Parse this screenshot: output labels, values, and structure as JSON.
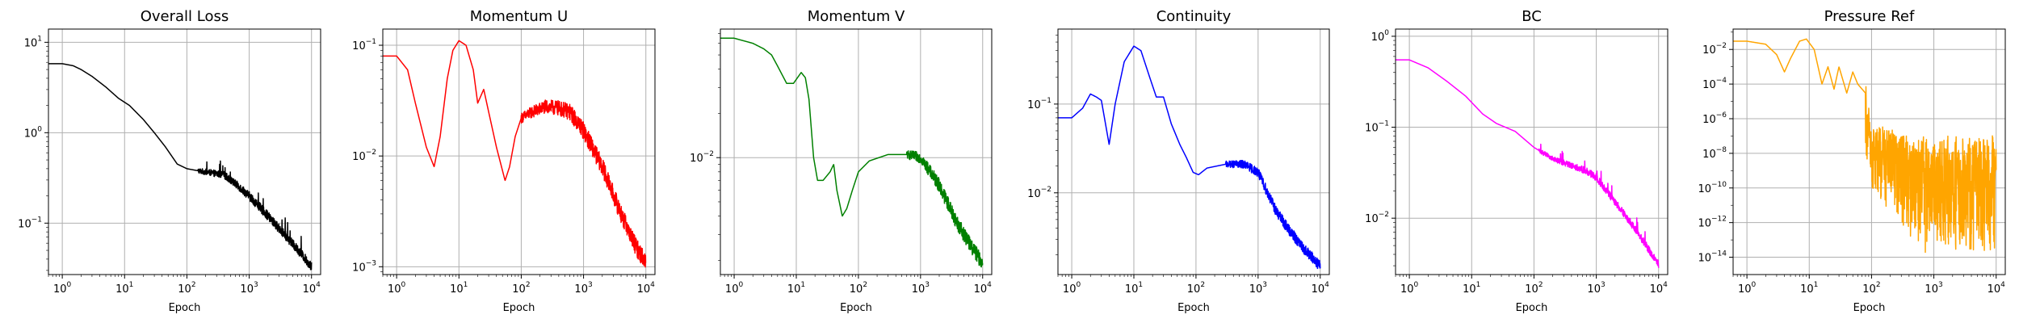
{
  "chart_data": [
    {
      "type": "line",
      "title": "Overall Loss",
      "xlabel": "Epoch",
      "ylabel": "",
      "xscale": "log",
      "yscale": "log",
      "xlim": [
        0.6,
        14000
      ],
      "ylim": [
        0.027,
        14
      ],
      "xticks": [
        1,
        10,
        100,
        1000,
        10000
      ],
      "yticks": [
        0.1,
        1,
        10
      ],
      "grid": true,
      "color": "#000000",
      "noise": {
        "from_epoch": 150,
        "amplitude_decades": 0.05,
        "spikes": true
      },
      "points": [
        [
          0.6,
          5.8
        ],
        [
          1,
          5.8
        ],
        [
          1.5,
          5.5
        ],
        [
          2,
          5.0
        ],
        [
          3,
          4.2
        ],
        [
          5,
          3.2
        ],
        [
          8,
          2.4
        ],
        [
          12,
          2.0
        ],
        [
          20,
          1.4
        ],
        [
          30,
          1.0
        ],
        [
          45,
          0.7
        ],
        [
          70,
          0.45
        ],
        [
          100,
          0.4
        ],
        [
          150,
          0.38
        ],
        [
          250,
          0.36
        ],
        [
          400,
          0.34
        ],
        [
          700,
          0.25
        ],
        [
          1000,
          0.2
        ],
        [
          2000,
          0.12
        ],
        [
          4000,
          0.07
        ],
        [
          7000,
          0.045
        ],
        [
          10000,
          0.033
        ]
      ]
    },
    {
      "type": "line",
      "title": "Momentum U",
      "xlabel": "Epoch",
      "ylabel": "",
      "xscale": "log",
      "yscale": "log",
      "xlim": [
        0.6,
        14000
      ],
      "ylim": [
        0.00085,
        0.14
      ],
      "xticks": [
        1,
        10,
        100,
        1000,
        10000
      ],
      "yticks": [
        0.001,
        0.01,
        0.1
      ],
      "grid": true,
      "color": "#ff0000",
      "noise": {
        "from_epoch": 100,
        "amplitude_decades": 0.08,
        "spikes": false
      },
      "points": [
        [
          0.6,
          0.08
        ],
        [
          1,
          0.08
        ],
        [
          1.5,
          0.06
        ],
        [
          2,
          0.03
        ],
        [
          3,
          0.012
        ],
        [
          4,
          0.008
        ],
        [
          5,
          0.015
        ],
        [
          6.5,
          0.05
        ],
        [
          8,
          0.09
        ],
        [
          10,
          0.11
        ],
        [
          13,
          0.1
        ],
        [
          17,
          0.06
        ],
        [
          20,
          0.03
        ],
        [
          25,
          0.04
        ],
        [
          30,
          0.025
        ],
        [
          40,
          0.012
        ],
        [
          55,
          0.006
        ],
        [
          65,
          0.008
        ],
        [
          80,
          0.015
        ],
        [
          100,
          0.022
        ],
        [
          150,
          0.025
        ],
        [
          250,
          0.028
        ],
        [
          400,
          0.027
        ],
        [
          600,
          0.025
        ],
        [
          1000,
          0.017
        ],
        [
          2000,
          0.008
        ],
        [
          4000,
          0.003
        ],
        [
          7000,
          0.0015
        ],
        [
          10000,
          0.0011
        ]
      ]
    },
    {
      "type": "line",
      "title": "Momentum V",
      "xlabel": "Epoch",
      "ylabel": "",
      "xscale": "log",
      "yscale": "log",
      "xlim": [
        0.6,
        14000
      ],
      "ylim": [
        0.0016,
        0.075
      ],
      "xticks": [
        1,
        10,
        100,
        1000,
        10000
      ],
      "yticks": [
        0.01
      ],
      "grid": true,
      "color": "#008000",
      "noise": {
        "from_epoch": 600,
        "amplitude_decades": 0.05,
        "spikes": false
      },
      "points": [
        [
          0.6,
          0.065
        ],
        [
          1,
          0.065
        ],
        [
          2,
          0.06
        ],
        [
          3,
          0.055
        ],
        [
          4,
          0.05
        ],
        [
          5,
          0.042
        ],
        [
          7,
          0.032
        ],
        [
          9,
          0.032
        ],
        [
          12,
          0.038
        ],
        [
          14,
          0.035
        ],
        [
          16,
          0.025
        ],
        [
          19,
          0.01
        ],
        [
          22,
          0.007
        ],
        [
          27,
          0.007
        ],
        [
          35,
          0.008
        ],
        [
          40,
          0.009
        ],
        [
          45,
          0.006
        ],
        [
          55,
          0.004
        ],
        [
          65,
          0.0045
        ],
        [
          80,
          0.006
        ],
        [
          100,
          0.008
        ],
        [
          150,
          0.0095
        ],
        [
          300,
          0.0105
        ],
        [
          600,
          0.0105
        ],
        [
          1000,
          0.01
        ],
        [
          2000,
          0.0065
        ],
        [
          4000,
          0.0035
        ],
        [
          7000,
          0.0024
        ],
        [
          10000,
          0.0019
        ]
      ]
    },
    {
      "type": "line",
      "title": "Continuity",
      "xlabel": "Epoch",
      "ylabel": "",
      "xscale": "log",
      "yscale": "log",
      "xlim": [
        0.6,
        14000
      ],
      "ylim": [
        0.0012,
        0.7
      ],
      "xticks": [
        1,
        10,
        100,
        1000,
        10000
      ],
      "yticks": [
        0.01,
        0.1
      ],
      "grid": true,
      "color": "#0000ff",
      "noise": {
        "from_epoch": 300,
        "amplitude_decades": 0.06,
        "spikes": false
      },
      "points": [
        [
          0.6,
          0.07
        ],
        [
          1,
          0.07
        ],
        [
          1.5,
          0.09
        ],
        [
          2,
          0.13
        ],
        [
          2.5,
          0.12
        ],
        [
          3,
          0.11
        ],
        [
          4,
          0.035
        ],
        [
          5,
          0.1
        ],
        [
          7,
          0.3
        ],
        [
          10,
          0.45
        ],
        [
          13,
          0.4
        ],
        [
          18,
          0.2
        ],
        [
          23,
          0.12
        ],
        [
          30,
          0.12
        ],
        [
          40,
          0.06
        ],
        [
          55,
          0.035
        ],
        [
          70,
          0.025
        ],
        [
          90,
          0.017
        ],
        [
          110,
          0.016
        ],
        [
          150,
          0.019
        ],
        [
          300,
          0.021
        ],
        [
          600,
          0.021
        ],
        [
          1000,
          0.017
        ],
        [
          2000,
          0.006
        ],
        [
          3000,
          0.004
        ],
        [
          5000,
          0.0025
        ],
        [
          10000,
          0.0015
        ]
      ]
    },
    {
      "type": "line",
      "title": "BC",
      "xlabel": "Epoch",
      "ylabel": "",
      "xscale": "log",
      "yscale": "log",
      "xlim": [
        0.6,
        14000
      ],
      "ylim": [
        0.0024,
        1.2
      ],
      "xticks": [
        1,
        10,
        100,
        1000,
        10000
      ],
      "yticks": [
        0.01,
        0.1,
        1
      ],
      "grid": true,
      "color": "#ff00ff",
      "noise": {
        "from_epoch": 120,
        "amplitude_decades": 0.04,
        "spikes": true
      },
      "points": [
        [
          0.6,
          0.55
        ],
        [
          1,
          0.55
        ],
        [
          2,
          0.45
        ],
        [
          4,
          0.32
        ],
        [
          8,
          0.22
        ],
        [
          15,
          0.14
        ],
        [
          25,
          0.11
        ],
        [
          50,
          0.09
        ],
        [
          100,
          0.06
        ],
        [
          200,
          0.045
        ],
        [
          400,
          0.038
        ],
        [
          700,
          0.033
        ],
        [
          1000,
          0.028
        ],
        [
          2000,
          0.015
        ],
        [
          4000,
          0.008
        ],
        [
          7000,
          0.0045
        ],
        [
          10000,
          0.0031
        ]
      ]
    },
    {
      "type": "line",
      "title": "Pressure Ref",
      "xlabel": "Epoch",
      "ylabel": "",
      "xscale": "log",
      "yscale": "log",
      "xlim": [
        0.6,
        14000
      ],
      "ylim": [
        1e-15,
        0.15
      ],
      "xticks": [
        1,
        10,
        100,
        1000,
        10000
      ],
      "yticks": [
        1e-14,
        1e-12,
        1e-10,
        1e-08,
        1e-06,
        0.0001,
        0.01
      ],
      "grid": true,
      "color": "#ffa500",
      "noise": {
        "from_epoch": 80,
        "amplitude_decades": 3.0,
        "spikes": true
      },
      "points": [
        [
          0.6,
          0.03
        ],
        [
          1,
          0.03
        ],
        [
          2,
          0.02
        ],
        [
          3,
          0.005
        ],
        [
          4,
          0.0005
        ],
        [
          5,
          0.003
        ],
        [
          7,
          0.03
        ],
        [
          9,
          0.04
        ],
        [
          12,
          0.01
        ],
        [
          16,
          0.0001
        ],
        [
          20,
          0.001
        ],
        [
          25,
          5e-05
        ],
        [
          30,
          0.001
        ],
        [
          40,
          3e-05
        ],
        [
          50,
          0.0005
        ],
        [
          60,
          0.0001
        ],
        [
          80,
          3e-05
        ],
        [
          100,
          1e-07
        ],
        [
          200,
          1e-07
        ],
        [
          500,
          1e-08
        ],
        [
          1000,
          1e-08
        ],
        [
          2000,
          1e-08
        ],
        [
          5000,
          1e-08
        ],
        [
          10000,
          1e-08
        ]
      ]
    }
  ]
}
